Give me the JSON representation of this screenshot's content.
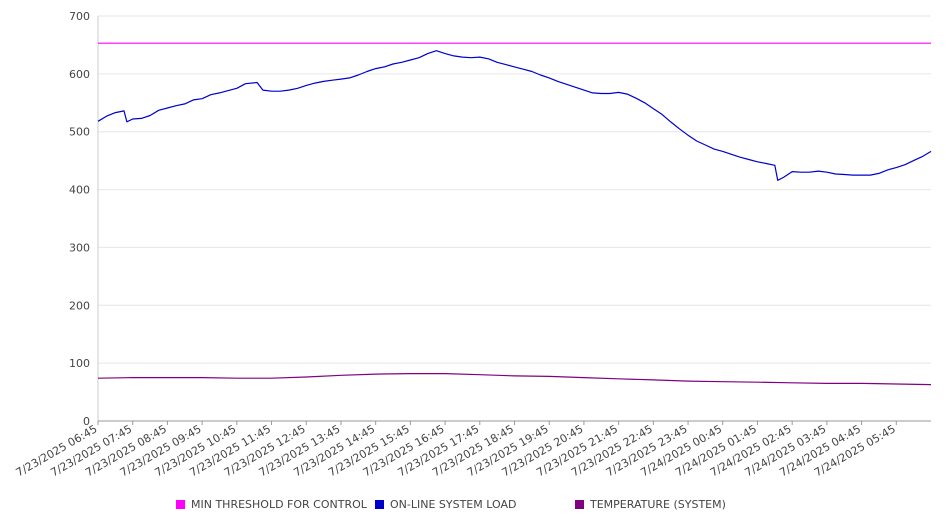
{
  "chart_data": {
    "type": "line",
    "x_ticks": [
      "7/23/2025 06:45",
      "7/23/2025 07:45",
      "7/23/2025 08:45",
      "7/23/2025 09:45",
      "7/23/2025 10:45",
      "7/23/2025 11:45",
      "7/23/2025 12:45",
      "7/23/2025 13:45",
      "7/23/2025 14:45",
      "7/23/2025 15:45",
      "7/23/2025 16:45",
      "7/23/2025 17:45",
      "7/23/2025 18:45",
      "7/23/2025 19:45",
      "7/23/2025 20:45",
      "7/23/2025 21:45",
      "7/23/2025 22:45",
      "7/23/2025 23:45",
      "7/24/2025 00:45",
      "7/24/2025 01:45",
      "7/24/2025 02:45",
      "7/24/2025 03:45",
      "7/24/2025 04:45",
      "7/24/2025 05:45"
    ],
    "x_range": [
      "7/23/2025 06:45",
      "7/24/2025 06:45"
    ],
    "ylim": [
      0,
      700
    ],
    "y_ticks": [
      0,
      100,
      200,
      300,
      400,
      500,
      600,
      700
    ],
    "grid": true,
    "legend_position": "bottom",
    "series": [
      {
        "name": "MIN THRESHOLD FOR CONTROL",
        "color": "#ff00ff",
        "points": [
          [
            "7/23/2025 06:45",
            653
          ],
          [
            "7/24/2025 06:45",
            653
          ]
        ]
      },
      {
        "name": "ON-LINE SYSTEM LOAD",
        "color": "#0000cc",
        "points": [
          [
            "7/23/2025 06:45",
            518
          ],
          [
            "7/23/2025 07:00",
            527
          ],
          [
            "7/23/2025 07:15",
            533
          ],
          [
            "7/23/2025 07:30",
            536
          ],
          [
            "7/23/2025 07:35",
            517
          ],
          [
            "7/23/2025 07:45",
            522
          ],
          [
            "7/23/2025 08:00",
            523
          ],
          [
            "7/23/2025 08:15",
            528
          ],
          [
            "7/23/2025 08:30",
            537
          ],
          [
            "7/23/2025 08:45",
            541
          ],
          [
            "7/23/2025 09:00",
            545
          ],
          [
            "7/23/2025 09:15",
            548
          ],
          [
            "7/23/2025 09:30",
            555
          ],
          [
            "7/23/2025 09:45",
            557
          ],
          [
            "7/23/2025 10:00",
            564
          ],
          [
            "7/23/2025 10:15",
            567
          ],
          [
            "7/23/2025 10:30",
            571
          ],
          [
            "7/23/2025 10:45",
            575
          ],
          [
            "7/23/2025 11:00",
            583
          ],
          [
            "7/23/2025 11:20",
            585
          ],
          [
            "7/23/2025 11:30",
            572
          ],
          [
            "7/23/2025 11:45",
            570
          ],
          [
            "7/23/2025 12:00",
            570
          ],
          [
            "7/23/2025 12:15",
            572
          ],
          [
            "7/23/2025 12:30",
            575
          ],
          [
            "7/23/2025 12:45",
            580
          ],
          [
            "7/23/2025 13:00",
            584
          ],
          [
            "7/23/2025 13:15",
            587
          ],
          [
            "7/23/2025 13:30",
            589
          ],
          [
            "7/23/2025 13:45",
            591
          ],
          [
            "7/23/2025 14:00",
            593
          ],
          [
            "7/23/2025 14:15",
            598
          ],
          [
            "7/23/2025 14:30",
            604
          ],
          [
            "7/23/2025 14:45",
            609
          ],
          [
            "7/23/2025 15:00",
            612
          ],
          [
            "7/23/2025 15:15",
            617
          ],
          [
            "7/23/2025 15:30",
            620
          ],
          [
            "7/23/2025 15:45",
            624
          ],
          [
            "7/23/2025 16:00",
            628
          ],
          [
            "7/23/2025 16:15",
            635
          ],
          [
            "7/23/2025 16:30",
            640
          ],
          [
            "7/23/2025 16:45",
            635
          ],
          [
            "7/23/2025 17:00",
            631
          ],
          [
            "7/23/2025 17:15",
            629
          ],
          [
            "7/23/2025 17:30",
            628
          ],
          [
            "7/23/2025 17:45",
            629
          ],
          [
            "7/23/2025 18:00",
            626
          ],
          [
            "7/23/2025 18:15",
            620
          ],
          [
            "7/23/2025 18:30",
            616
          ],
          [
            "7/23/2025 18:45",
            612
          ],
          [
            "7/23/2025 19:00",
            608
          ],
          [
            "7/23/2025 19:15",
            604
          ],
          [
            "7/23/2025 19:30",
            598
          ],
          [
            "7/23/2025 19:45",
            593
          ],
          [
            "7/23/2025 20:00",
            587
          ],
          [
            "7/23/2025 20:15",
            582
          ],
          [
            "7/23/2025 20:30",
            577
          ],
          [
            "7/23/2025 20:45",
            572
          ],
          [
            "7/23/2025 21:00",
            567
          ],
          [
            "7/23/2025 21:15",
            566
          ],
          [
            "7/23/2025 21:30",
            566
          ],
          [
            "7/23/2025 21:45",
            568
          ],
          [
            "7/23/2025 22:00",
            565
          ],
          [
            "7/23/2025 22:15",
            558
          ],
          [
            "7/23/2025 22:30",
            550
          ],
          [
            "7/23/2025 22:45",
            540
          ],
          [
            "7/23/2025 23:00",
            530
          ],
          [
            "7/23/2025 23:15",
            517
          ],
          [
            "7/23/2025 23:30",
            505
          ],
          [
            "7/23/2025 23:45",
            494
          ],
          [
            "7/24/2025 00:00",
            484
          ],
          [
            "7/24/2025 00:15",
            477
          ],
          [
            "7/24/2025 00:30",
            470
          ],
          [
            "7/24/2025 00:45",
            466
          ],
          [
            "7/24/2025 01:00",
            461
          ],
          [
            "7/24/2025 01:15",
            456
          ],
          [
            "7/24/2025 01:30",
            452
          ],
          [
            "7/24/2025 01:45",
            448
          ],
          [
            "7/24/2025 02:00",
            445
          ],
          [
            "7/24/2025 02:15",
            442
          ],
          [
            "7/24/2025 02:20",
            416
          ],
          [
            "7/24/2025 02:30",
            421
          ],
          [
            "7/24/2025 02:45",
            431
          ],
          [
            "7/24/2025 03:00",
            430
          ],
          [
            "7/24/2025 03:15",
            430
          ],
          [
            "7/24/2025 03:30",
            432
          ],
          [
            "7/24/2025 03:45",
            430
          ],
          [
            "7/24/2025 04:00",
            427
          ],
          [
            "7/24/2025 04:15",
            426
          ],
          [
            "7/24/2025 04:30",
            425
          ],
          [
            "7/24/2025 04:45",
            425
          ],
          [
            "7/24/2025 05:00",
            425
          ],
          [
            "7/24/2025 05:15",
            428
          ],
          [
            "7/24/2025 05:30",
            434
          ],
          [
            "7/24/2025 05:45",
            438
          ],
          [
            "7/24/2025 06:00",
            443
          ],
          [
            "7/24/2025 06:15",
            450
          ],
          [
            "7/24/2025 06:30",
            457
          ],
          [
            "7/24/2025 06:45",
            466
          ]
        ]
      },
      {
        "name": "TEMPERATURE (SYSTEM)",
        "color": "#800080",
        "points": [
          [
            "7/23/2025 06:45",
            74
          ],
          [
            "7/23/2025 07:45",
            75
          ],
          [
            "7/23/2025 08:45",
            75
          ],
          [
            "7/23/2025 09:45",
            75
          ],
          [
            "7/23/2025 10:45",
            74
          ],
          [
            "7/23/2025 11:45",
            74
          ],
          [
            "7/23/2025 12:45",
            76
          ],
          [
            "7/23/2025 13:45",
            79
          ],
          [
            "7/23/2025 14:45",
            81
          ],
          [
            "7/23/2025 15:45",
            82
          ],
          [
            "7/23/2025 16:45",
            82
          ],
          [
            "7/23/2025 17:45",
            80
          ],
          [
            "7/23/2025 18:45",
            78
          ],
          [
            "7/23/2025 19:45",
            77
          ],
          [
            "7/23/2025 20:45",
            75
          ],
          [
            "7/23/2025 21:45",
            73
          ],
          [
            "7/23/2025 22:45",
            71
          ],
          [
            "7/23/2025 23:45",
            69
          ],
          [
            "7/24/2025 00:45",
            68
          ],
          [
            "7/24/2025 01:45",
            67
          ],
          [
            "7/24/2025 02:45",
            66
          ],
          [
            "7/24/2025 03:45",
            65
          ],
          [
            "7/24/2025 04:45",
            65
          ],
          [
            "7/24/2025 05:45",
            64
          ],
          [
            "7/24/2025 06:45",
            63
          ]
        ]
      }
    ]
  }
}
